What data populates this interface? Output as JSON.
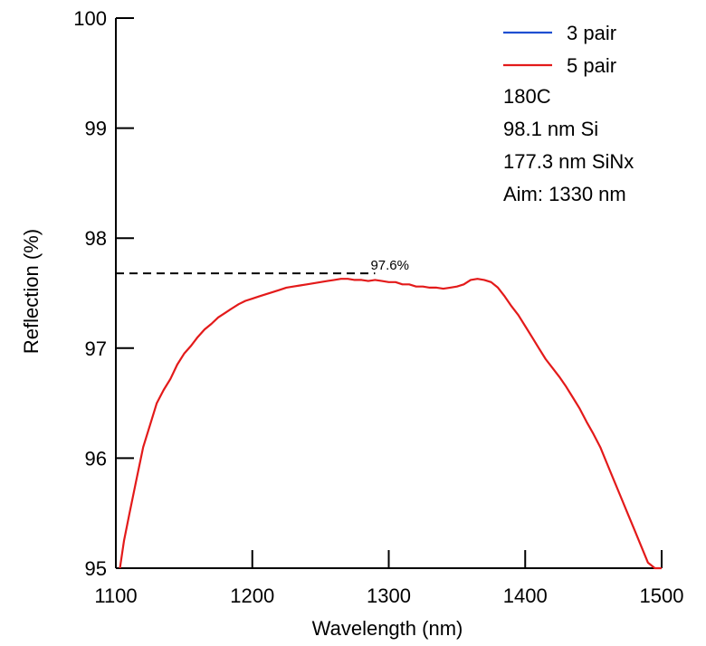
{
  "chart_data": {
    "type": "line",
    "xlabel": "Wavelength (nm)",
    "ylabel": "Reflection (%)",
    "xlim": [
      1100,
      1500
    ],
    "ylim": [
      95,
      100
    ],
    "x_ticks": [
      1100,
      1200,
      1300,
      1400,
      1500
    ],
    "y_ticks": [
      95,
      96,
      97,
      98,
      99,
      100
    ],
    "x_tick_labels": [
      "1100",
      "1200",
      "1300",
      "1400",
      "1500"
    ],
    "y_tick_labels": [
      "95",
      "96",
      "97",
      "98",
      "99",
      "100"
    ],
    "grid": false,
    "legend_position": "top-right",
    "series": [
      {
        "name": "3 pair",
        "color": "#1f4fd1",
        "x": [],
        "y": []
      },
      {
        "name": "5 pair",
        "color": "#e31a1a",
        "x": [
          1103,
          1106,
          1110,
          1115,
          1120,
          1125,
          1130,
          1135,
          1140,
          1145,
          1150,
          1155,
          1160,
          1165,
          1170,
          1175,
          1180,
          1185,
          1190,
          1195,
          1200,
          1205,
          1210,
          1215,
          1220,
          1225,
          1230,
          1235,
          1240,
          1245,
          1250,
          1255,
          1260,
          1265,
          1270,
          1275,
          1280,
          1285,
          1290,
          1295,
          1300,
          1305,
          1310,
          1315,
          1320,
          1325,
          1330,
          1335,
          1340,
          1345,
          1350,
          1355,
          1360,
          1365,
          1370,
          1375,
          1380,
          1385,
          1390,
          1395,
          1400,
          1405,
          1410,
          1415,
          1420,
          1425,
          1430,
          1435,
          1440,
          1445,
          1450,
          1455,
          1460,
          1465,
          1470,
          1475,
          1480,
          1485,
          1490,
          1495,
          1500
        ],
        "y": [
          95.0,
          95.25,
          95.5,
          95.8,
          96.1,
          96.3,
          96.5,
          96.62,
          96.72,
          96.85,
          96.95,
          97.02,
          97.1,
          97.17,
          97.22,
          97.28,
          97.32,
          97.36,
          97.4,
          97.43,
          97.45,
          97.47,
          97.49,
          97.51,
          97.53,
          97.55,
          97.56,
          97.57,
          97.58,
          97.59,
          97.6,
          97.61,
          97.62,
          97.63,
          97.63,
          97.62,
          97.62,
          97.61,
          97.62,
          97.61,
          97.6,
          97.6,
          97.58,
          97.58,
          97.56,
          97.56,
          97.55,
          97.55,
          97.54,
          97.55,
          97.56,
          97.58,
          97.62,
          97.63,
          97.62,
          97.6,
          97.55,
          97.47,
          97.38,
          97.3,
          97.2,
          97.1,
          97.0,
          96.9,
          96.82,
          96.74,
          96.65,
          96.55,
          96.45,
          96.33,
          96.22,
          96.1,
          95.95,
          95.8,
          95.65,
          95.5,
          95.35,
          95.2,
          95.05,
          94.95,
          95.0
        ]
      }
    ],
    "annotations": {
      "reference_value": 97.68,
      "reference_x_range": [
        1100,
        1290
      ],
      "label": "97.6%",
      "label_x": 1292
    },
    "notes": [
      "180C",
      "98.1 nm Si",
      "177.3 nm SiNx",
      "Aim: 1330 nm"
    ]
  }
}
